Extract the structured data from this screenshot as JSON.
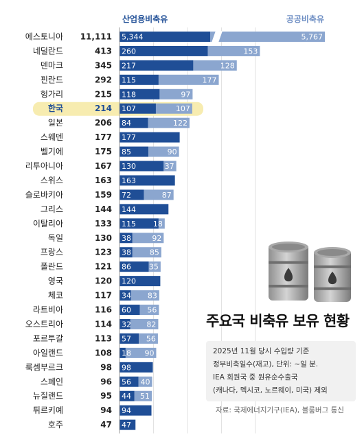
{
  "chart_data": {
    "type": "bar",
    "stacked": true,
    "orientation": "horizontal",
    "title": "주요국 비축유 보유 현황",
    "series": [
      {
        "name": "산업용비축유",
        "color": "#1f4e96"
      },
      {
        "name": "공공비축유",
        "color": "#8ba6cf"
      }
    ],
    "highlight": "한국",
    "highlight_color": "#f7ecb0",
    "rows": [
      {
        "country": "에스토니아",
        "total": "11,111",
        "industrial": 5344,
        "public": 5767,
        "industrial_label": "5,344",
        "public_label": "5,767",
        "axis_break": true
      },
      {
        "country": "네덜란드",
        "total": "413",
        "industrial": 260,
        "public": 153,
        "industrial_label": "260",
        "public_label": "153"
      },
      {
        "country": "덴마크",
        "total": "345",
        "industrial": 217,
        "public": 128,
        "industrial_label": "217",
        "public_label": "128"
      },
      {
        "country": "핀란드",
        "total": "292",
        "industrial": 115,
        "public": 177,
        "industrial_label": "115",
        "public_label": "177"
      },
      {
        "country": "헝가리",
        "total": "215",
        "industrial": 118,
        "public": 97,
        "industrial_label": "118",
        "public_label": "97"
      },
      {
        "country": "한국",
        "total": "214",
        "industrial": 107,
        "public": 107,
        "industrial_label": "107",
        "public_label": "107"
      },
      {
        "country": "일본",
        "total": "206",
        "industrial": 84,
        "public": 122,
        "industrial_label": "84",
        "public_label": "122"
      },
      {
        "country": "스웨덴",
        "total": "177",
        "industrial": 177,
        "public": 0,
        "industrial_label": "177",
        "public_label": ""
      },
      {
        "country": "벨기에",
        "total": "175",
        "industrial": 85,
        "public": 90,
        "industrial_label": "85",
        "public_label": "90"
      },
      {
        "country": "리투아니아",
        "total": "167",
        "industrial": 130,
        "public": 37,
        "industrial_label": "130",
        "public_label": "37"
      },
      {
        "country": "스위스",
        "total": "163",
        "industrial": 163,
        "public": 0,
        "industrial_label": "163",
        "public_label": ""
      },
      {
        "country": "슬로바키아",
        "total": "159",
        "industrial": 72,
        "public": 87,
        "industrial_label": "72",
        "public_label": "87"
      },
      {
        "country": "그리스",
        "total": "144",
        "industrial": 144,
        "public": 0,
        "industrial_label": "144",
        "public_label": ""
      },
      {
        "country": "이탈리아",
        "total": "133",
        "industrial": 115,
        "public": 18,
        "industrial_label": "115",
        "public_label": "18"
      },
      {
        "country": "독일",
        "total": "130",
        "industrial": 38,
        "public": 92,
        "industrial_label": "38",
        "public_label": "92"
      },
      {
        "country": "프랑스",
        "total": "123",
        "industrial": 38,
        "public": 85,
        "industrial_label": "38",
        "public_label": "85"
      },
      {
        "country": "폴란드",
        "total": "121",
        "industrial": 86,
        "public": 35,
        "industrial_label": "86",
        "public_label": "35"
      },
      {
        "country": "영국",
        "total": "120",
        "industrial": 120,
        "public": 0,
        "industrial_label": "120",
        "public_label": ""
      },
      {
        "country": "체코",
        "total": "117",
        "industrial": 34,
        "public": 83,
        "industrial_label": "34",
        "public_label": "83"
      },
      {
        "country": "라트비아",
        "total": "116",
        "industrial": 60,
        "public": 56,
        "industrial_label": "60",
        "public_label": "56"
      },
      {
        "country": "오스트리아",
        "total": "114",
        "industrial": 32,
        "public": 82,
        "industrial_label": "32",
        "public_label": "82"
      },
      {
        "country": "포르투갈",
        "total": "113",
        "industrial": 57,
        "public": 56,
        "industrial_label": "57",
        "public_label": "56"
      },
      {
        "country": "아일랜드",
        "total": "108",
        "industrial": 18,
        "public": 90,
        "industrial_label": "18",
        "public_label": "90"
      },
      {
        "country": "룩셈부르크",
        "total": "98",
        "industrial": 98,
        "public": 0,
        "industrial_label": "98",
        "public_label": ""
      },
      {
        "country": "스페인",
        "total": "96",
        "industrial": 56,
        "public": 40,
        "industrial_label": "56",
        "public_label": "40"
      },
      {
        "country": "뉴질랜드",
        "total": "95",
        "industrial": 44,
        "public": 51,
        "industrial_label": "44",
        "public_label": "51"
      },
      {
        "country": "튀르키예",
        "total": "94",
        "industrial": 94,
        "public": 0,
        "industrial_label": "94",
        "public_label": ""
      },
      {
        "country": "호주",
        "total": "47",
        "industrial": 47,
        "public": 0,
        "industrial_label": "47",
        "public_label": ""
      }
    ],
    "x_ticks": [
      {
        "value": 0,
        "label": "0"
      },
      {
        "value": 100,
        "label": "100"
      },
      {
        "value": 200,
        "label": "200"
      },
      {
        "value": 300,
        "label": "300"
      },
      {
        "value": 400,
        "label": "400"
      }
    ],
    "xlim": [
      0,
      400
    ],
    "grid": true,
    "legend_position": "top"
  },
  "info": {
    "lines": [
      "2025년 11월 당시 수입량 기준",
      "정부비축일수(재고), 단위: ~일 분.",
      "IEA 회원국 중 원유순수출국",
      "(캐나다, 멕시코, 노르웨이, 미국) 제외"
    ]
  },
  "source": "자료: 국제에너지기구(IEA), 블룸버그 통신",
  "illustration": "oil-barrels-icon"
}
